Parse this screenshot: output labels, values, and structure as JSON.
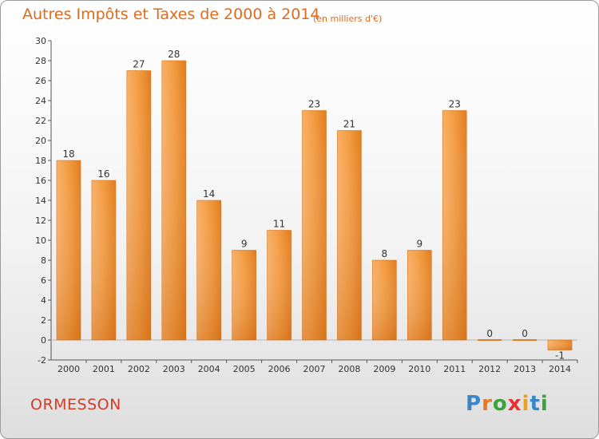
{
  "chart_data": {
    "type": "bar",
    "title": "Autres Impôts et Taxes de 2000 à 2014",
    "subtitle": "(en milliers d'€)",
    "categories": [
      "2000",
      "2001",
      "2002",
      "2003",
      "2004",
      "2005",
      "2006",
      "2007",
      "2008",
      "2009",
      "2010",
      "2011",
      "2012",
      "2013",
      "2014"
    ],
    "values": [
      18,
      16,
      27,
      28,
      14,
      9,
      11,
      23,
      21,
      8,
      9,
      23,
      0,
      0,
      -1
    ],
    "ylim": [
      -2,
      30
    ],
    "ytick_step": 2,
    "yticks": [
      "-2",
      "0",
      "2",
      "4",
      "6",
      "8",
      "10",
      "12",
      "14",
      "16",
      "18",
      "20",
      "22",
      "24",
      "26",
      "28",
      "30"
    ],
    "grid": false,
    "bar_color": "#f0902f"
  },
  "footer": {
    "commune": "ORMESSON",
    "logo": [
      "P",
      "r",
      "o",
      "x",
      "i",
      "t",
      "i"
    ],
    "logo_colors": [
      "#3a86c8",
      "#e8771f",
      "#3aa33a",
      "#e83030",
      "#e8a21f",
      "#3a86c8",
      "#3aa33a"
    ]
  }
}
